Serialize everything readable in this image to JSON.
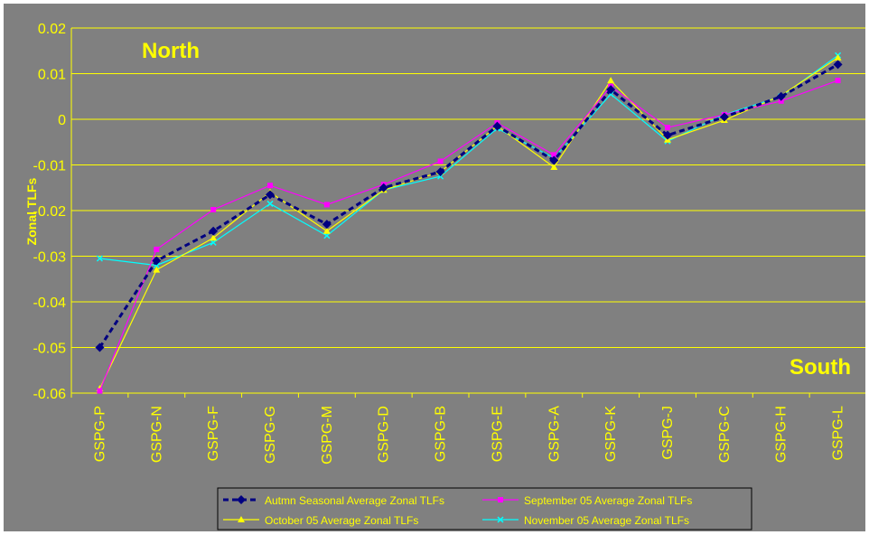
{
  "chart_data": {
    "type": "line",
    "ylabel": "Zonal TLFs",
    "ylim": [
      -0.06,
      0.02
    ],
    "ytick_step": 0.01,
    "ytick_labels": [
      "0.02",
      "0.01",
      "0",
      "-0.01",
      "-0.02",
      "-0.03",
      "-0.04",
      "-0.05",
      "-0.06"
    ],
    "categories": [
      "GSPG-P",
      "GSPG-N",
      "GSPG-F",
      "GSPG-G",
      "GSPG-M",
      "GSPG-D",
      "GSPG-B",
      "GSPG-E",
      "GSPG-A",
      "GSPG-K",
      "GSPG-J",
      "GSPG-C",
      "GSPG-H",
      "GSPG-L"
    ],
    "annotations": {
      "top_left": "North",
      "bottom_right": "South"
    },
    "grid": true,
    "legend_position": "bottom",
    "series": [
      {
        "name": "Autmn Seasonal Average Zonal TLFs",
        "color": "#000080",
        "marker": "diamond",
        "dashed": true,
        "values": [
          -0.05,
          -0.031,
          -0.0245,
          -0.0165,
          -0.023,
          -0.015,
          -0.0115,
          -0.0015,
          -0.009,
          0.0065,
          -0.0035,
          0.0005,
          0.005,
          0.012
        ]
      },
      {
        "name": "September 05 Average Zonal TLFs",
        "color": "#ff00ff",
        "marker": "square",
        "dashed": false,
        "values": [
          -0.0595,
          -0.0285,
          -0.0198,
          -0.0145,
          -0.0187,
          -0.0143,
          -0.0092,
          -0.0008,
          -0.0078,
          0.0072,
          -0.0018,
          0.001,
          0.004,
          0.0085
        ]
      },
      {
        "name": "October 05 Average Zonal TLFs",
        "color": "#ffff00",
        "marker": "triangle",
        "dashed": false,
        "values": [
          -0.059,
          -0.033,
          -0.026,
          -0.016,
          -0.0245,
          -0.0155,
          -0.0115,
          -0.0015,
          -0.0105,
          0.0085,
          -0.0045,
          -0.0002,
          0.0052,
          0.0135
        ]
      },
      {
        "name": "November 05 Average Zonal TLFs",
        "color": "#00ffff",
        "marker": "x",
        "dashed": false,
        "values": [
          -0.0305,
          -0.032,
          -0.027,
          -0.0185,
          -0.0255,
          -0.0155,
          -0.0125,
          -0.002,
          -0.0085,
          0.0055,
          -0.0048,
          0.001,
          0.005,
          0.014
        ]
      }
    ]
  }
}
